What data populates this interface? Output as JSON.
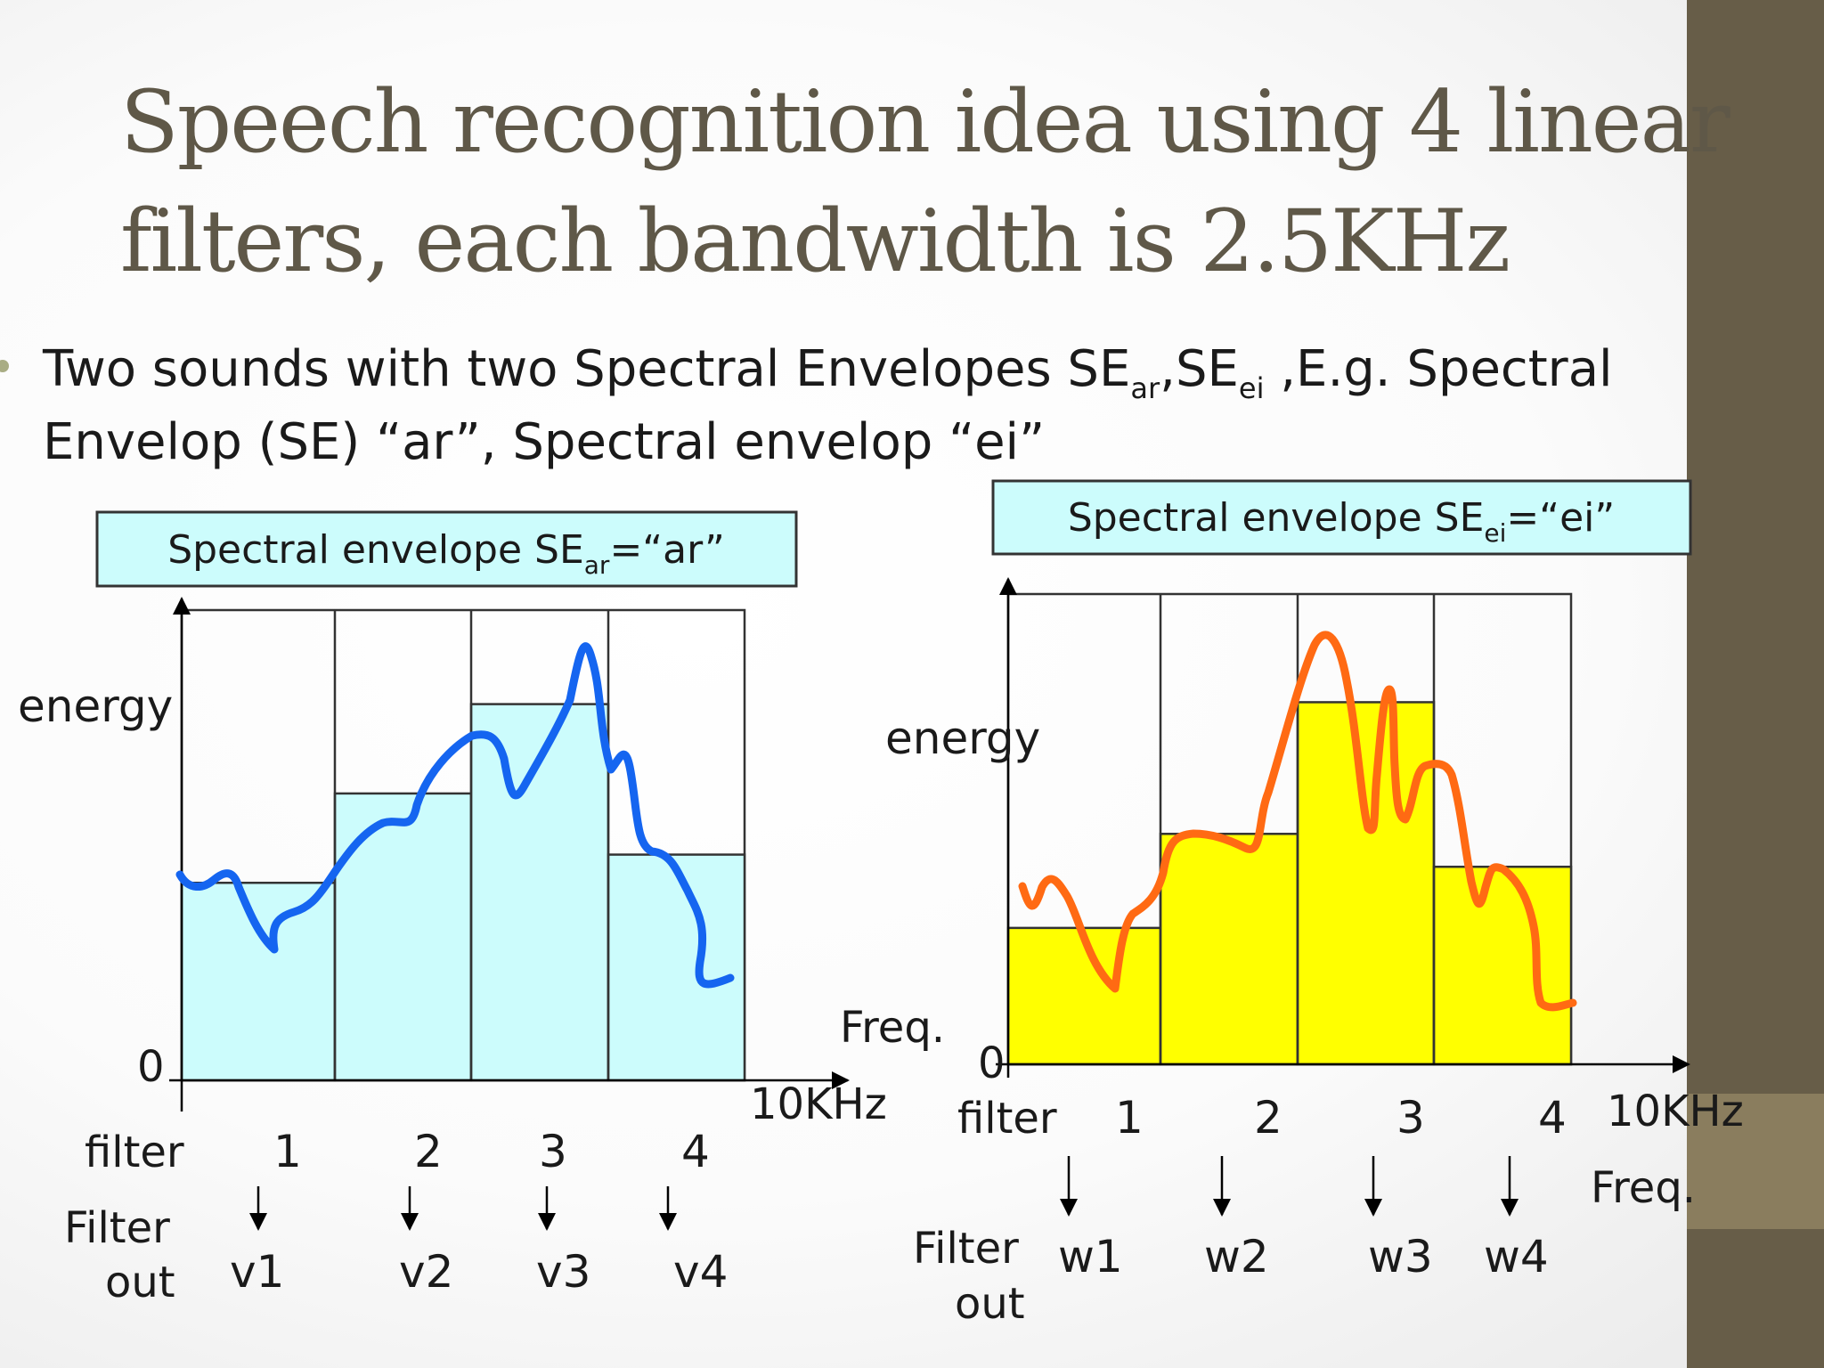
{
  "slide": {
    "title_line1": "Speech recognition idea using 4 linear",
    "title_line2": "filters, each bandwidth is 2.5KHz",
    "bullet": {
      "part1": "Two sounds with two Spectral Envelopes SE",
      "sub1": "ar",
      "part2": ",SE",
      "sub2": "ei",
      "part3": " ,E.g. Spectral",
      "line2": "Envelop (SE) “ar”, Spectral envelop “ei”"
    }
  },
  "colors": {
    "title": "#5f5848",
    "sidebar": "#675d48",
    "sidebar_light": "#8a7d5e",
    "bullet_dot": "#a9ad84",
    "box_fill": "#ccfcfc",
    "left_bar_fill": "#ccfcfc",
    "left_curve": "#1565f0",
    "right_bar_fill": "#ffff00",
    "right_curve": "#ff6a13"
  },
  "diagrams": [
    {
      "box_label_prefix": "Spectral envelope SE",
      "box_label_sub": "ar",
      "box_label_suffix": "=“ar”",
      "y_label": "energy",
      "zero_label": "0",
      "x_end_label": "10KHz",
      "x_axis_label": "Freq.",
      "filter_label": "filter",
      "filter_out_label_1": "Filter",
      "filter_out_label_2": "out",
      "filters": [
        "1",
        "2",
        "3",
        "4"
      ],
      "outputs": [
        "v1",
        "v2",
        "v3",
        "v4"
      ],
      "bar_levels": [
        0.42,
        0.61,
        0.8,
        0.48
      ]
    },
    {
      "box_label_prefix": "Spectral envelope SE",
      "box_label_sub": "ei",
      "box_label_suffix": "=“ei”",
      "y_label": "energy",
      "zero_label": "0",
      "x_end_label": "10KHz",
      "x_axis_label": "Freq.",
      "filter_label": "filter",
      "filter_out_label_1": "Filter",
      "filter_out_label_2": "out",
      "filters": [
        "1",
        "2",
        "3",
        "4"
      ],
      "outputs": [
        "w1",
        "w2",
        "w3",
        "w4"
      ],
      "bar_levels": [
        0.29,
        0.49,
        0.77,
        0.42
      ]
    }
  ]
}
